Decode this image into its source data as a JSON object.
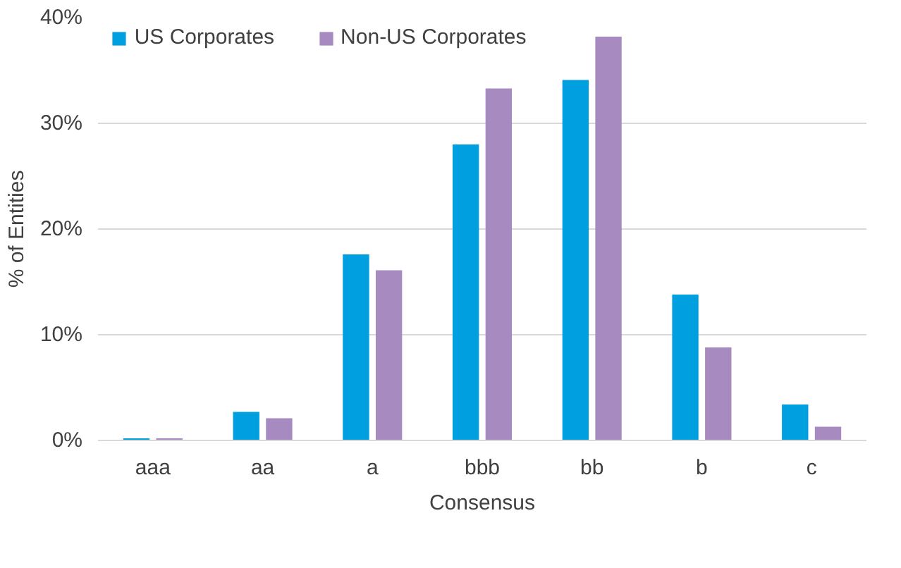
{
  "chart_data": {
    "type": "bar",
    "xlabel": "Consensus",
    "ylabel": "% of Entities",
    "categories": [
      "aaa",
      "aa",
      "a",
      "bbb",
      "bb",
      "b",
      "c"
    ],
    "series": [
      {
        "name": "US Corporates",
        "color": "#00a0e0",
        "values": [
          0.2,
          2.7,
          17.6,
          28.0,
          34.1,
          13.8,
          3.4
        ]
      },
      {
        "name": "Non-US Corporates",
        "color": "#a78bc0",
        "values": [
          0.2,
          2.1,
          16.1,
          33.3,
          38.2,
          8.8,
          1.3
        ]
      }
    ],
    "ylim": [
      0,
      40
    ],
    "yticks": [
      {
        "value": 0,
        "label": "0%"
      },
      {
        "value": 10,
        "label": "10%"
      },
      {
        "value": 20,
        "label": "20%"
      },
      {
        "value": 30,
        "label": "30%"
      },
      {
        "value": 40,
        "label": "40%"
      }
    ],
    "grid": "y",
    "legend": "top left"
  }
}
